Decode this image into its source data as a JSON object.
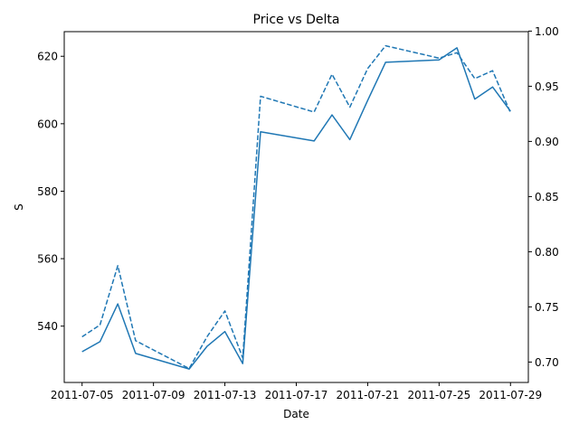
{
  "chart_data": {
    "type": "line",
    "title": "Price vs Delta",
    "xlabel": "Date",
    "ylabel": "S",
    "ylabel_right": "",
    "x_ticks": [
      "2011-07-05",
      "2011-07-09",
      "2011-07-13",
      "2011-07-17",
      "2011-07-21",
      "2011-07-25",
      "2011-07-29"
    ],
    "y_ticks": [
      540,
      560,
      580,
      600,
      620
    ],
    "y2_ticks": [
      0.7,
      0.75,
      0.8,
      0.85,
      0.9,
      0.95,
      1.0
    ],
    "xlim": [
      "2011-07-04",
      "2011-07-30"
    ],
    "ylim": [
      523.3,
      627.3
    ],
    "y2lim": [
      0.6815,
      0.9995
    ],
    "grid": false,
    "series_color": "#1f77b4",
    "series": [
      {
        "axis": "left",
        "style": "solid",
        "x": [
          "2011-07-05",
          "2011-07-06",
          "2011-07-07",
          "2011-07-08",
          "2011-07-11",
          "2011-07-12",
          "2011-07-13",
          "2011-07-14",
          "2011-07-15",
          "2011-07-18",
          "2011-07-19",
          "2011-07-20",
          "2011-07-21",
          "2011-07-22",
          "2011-07-25",
          "2011-07-26",
          "2011-07-27",
          "2011-07-28",
          "2011-07-29"
        ],
        "values": [
          532.4,
          535.4,
          546.6,
          531.9,
          527.3,
          534.0,
          538.4,
          528.9,
          597.6,
          594.9,
          602.6,
          595.3,
          606.9,
          618.2,
          618.9,
          622.5,
          607.3,
          610.9,
          603.7
        ]
      },
      {
        "axis": "right",
        "style": "dashed",
        "x": [
          "2011-07-05",
          "2011-07-06",
          "2011-07-07",
          "2011-07-08",
          "2011-07-11",
          "2011-07-12",
          "2011-07-13",
          "2011-07-14",
          "2011-07-15",
          "2011-07-18",
          "2011-07-19",
          "2011-07-20",
          "2011-07-21",
          "2011-07-22",
          "2011-07-25",
          "2011-07-26",
          "2011-07-27",
          "2011-07-28",
          "2011-07-29"
        ],
        "values": [
          0.7229,
          0.7336,
          0.7874,
          0.7194,
          0.6941,
          0.7229,
          0.7463,
          0.7038,
          0.9409,
          0.9266,
          0.9609,
          0.9311,
          0.9661,
          0.9867,
          0.9755,
          0.9804,
          0.957,
          0.9641,
          0.9259
        ]
      }
    ]
  }
}
